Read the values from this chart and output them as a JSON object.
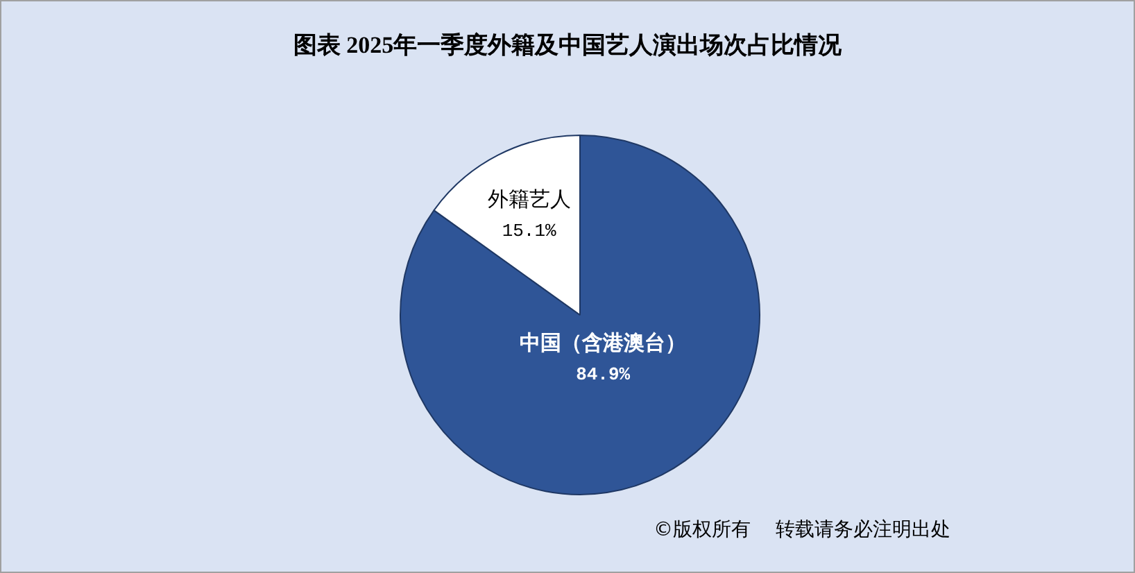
{
  "chart_data": {
    "type": "pie",
    "title": "图表  2025年一季度外籍及中国艺人演出场次占比情况",
    "categories": [
      "中国（含港澳台）",
      "外籍艺人"
    ],
    "values": [
      84.9,
      15.1
    ],
    "colors": [
      "#2f5597",
      "#ffffff"
    ],
    "value_labels": [
      "84.9%",
      "15.1%"
    ],
    "annotations": [
      "©版权所有    转载请务必注明出处"
    ]
  }
}
